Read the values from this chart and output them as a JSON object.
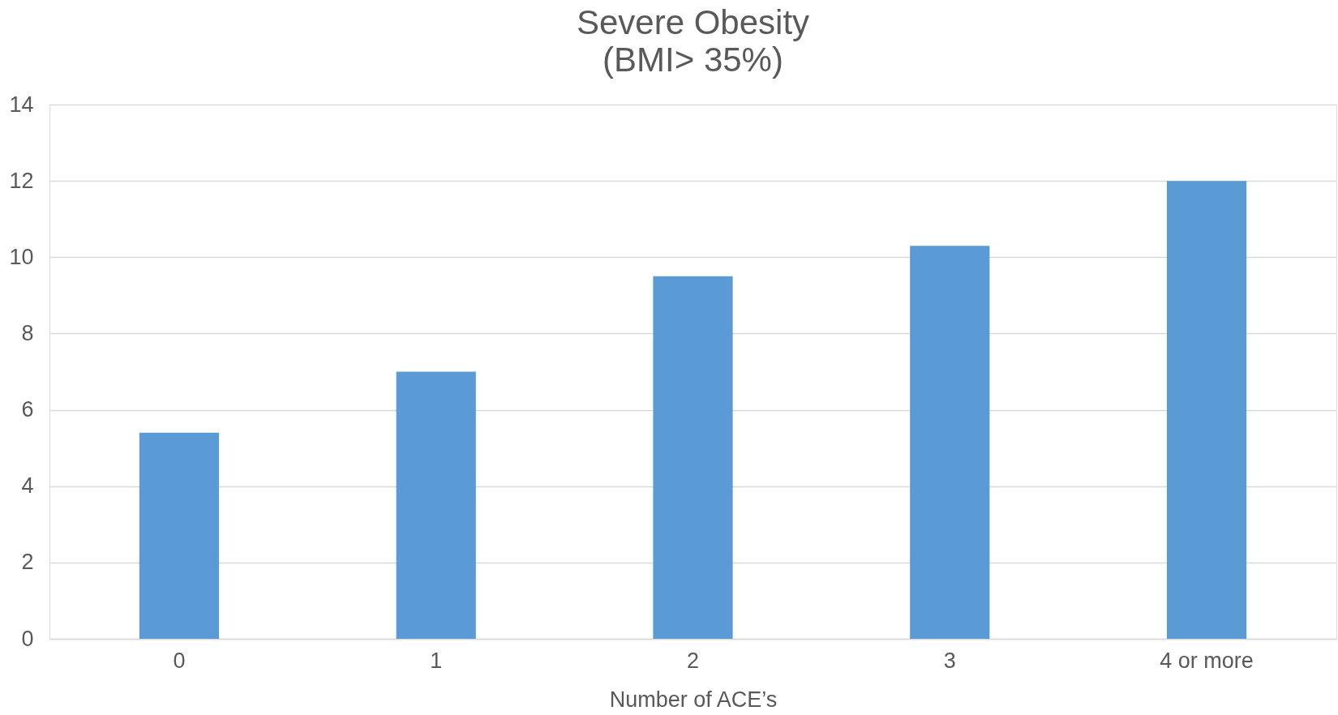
{
  "chart_data": {
    "type": "bar",
    "title": "Severe Obesity",
    "subtitle": "(BMI> 35%)",
    "xlabel": "Number of ACE’s",
    "categories": [
      "0",
      "1",
      "2",
      "3",
      "4 or more"
    ],
    "values": [
      5.4,
      7.0,
      9.5,
      10.3,
      12.0
    ],
    "color": "#5b9bd5",
    "ylim": [
      0,
      14
    ],
    "yticks": [
      0,
      2,
      4,
      6,
      8,
      10,
      12,
      14
    ],
    "grid": "y"
  }
}
